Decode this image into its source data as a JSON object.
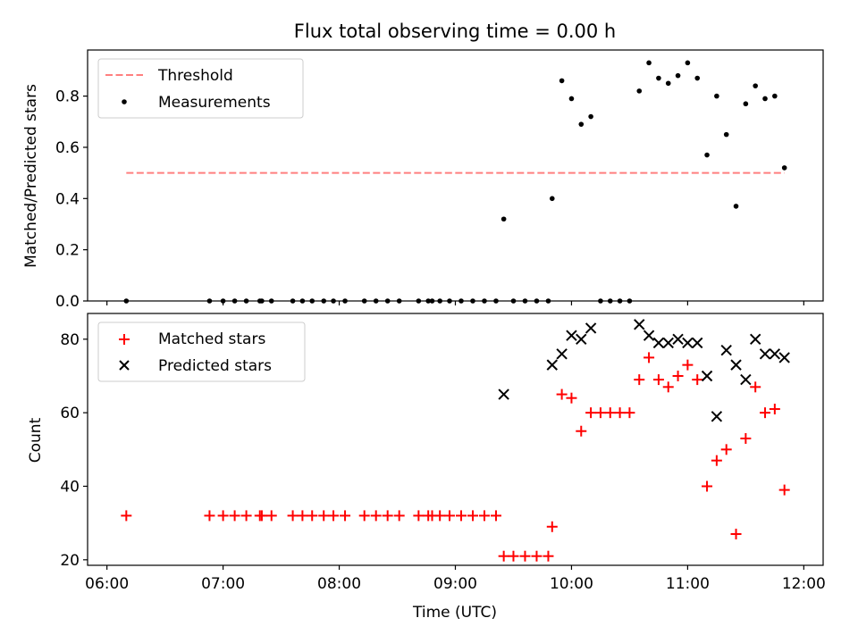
{
  "title": "Flux total observing time = 0.00 h",
  "chart_data": [
    {
      "type": "scatter",
      "ylabel": "Matched/Predicted stars",
      "xlim": [
        "05:50",
        "12:10"
      ],
      "ylim": [
        0,
        0.98
      ],
      "yticks": [
        0.0,
        0.2,
        0.4,
        0.6,
        0.8
      ],
      "ytick_labels": [
        "0.0",
        "0.2",
        "0.4",
        "0.6",
        "0.8"
      ],
      "legend_position": "upper-left",
      "threshold": {
        "name": "Threshold",
        "color": "#ff7f7f",
        "style": "dashed",
        "y": 0.5,
        "x": [
          "06:10",
          "11:50"
        ]
      },
      "measurements": {
        "name": "Measurements",
        "color": "#000000",
        "points": [
          [
            "06:10",
            0.0
          ],
          [
            "06:53",
            0.0
          ],
          [
            "07:00",
            0.0
          ],
          [
            "07:06",
            0.0
          ],
          [
            "07:12",
            0.0
          ],
          [
            "07:19",
            0.0
          ],
          [
            "07:20",
            0.0
          ],
          [
            "07:25",
            0.0
          ],
          [
            "07:36",
            0.0
          ],
          [
            "07:41",
            0.0
          ],
          [
            "07:46",
            0.0
          ],
          [
            "07:52",
            0.0
          ],
          [
            "07:57",
            0.0
          ],
          [
            "08:03",
            0.0
          ],
          [
            "08:13",
            0.0
          ],
          [
            "08:19",
            0.0
          ],
          [
            "08:25",
            0.0
          ],
          [
            "08:31",
            0.0
          ],
          [
            "08:41",
            0.0
          ],
          [
            "08:46",
            0.0
          ],
          [
            "08:48",
            0.0
          ],
          [
            "08:52",
            0.0
          ],
          [
            "08:57",
            0.0
          ],
          [
            "09:03",
            0.0
          ],
          [
            "09:09",
            0.0
          ],
          [
            "09:15",
            0.0
          ],
          [
            "09:21",
            0.0
          ],
          [
            "09:25",
            0.32
          ],
          [
            "09:30",
            0.0
          ],
          [
            "09:36",
            0.0
          ],
          [
            "09:42",
            0.0
          ],
          [
            "09:48",
            0.0
          ],
          [
            "09:50",
            0.4
          ],
          [
            "09:55",
            0.86
          ],
          [
            "10:00",
            0.79
          ],
          [
            "10:05",
            0.69
          ],
          [
            "10:10",
            0.72
          ],
          [
            "10:15",
            0.0
          ],
          [
            "10:20",
            0.0
          ],
          [
            "10:25",
            0.0
          ],
          [
            "10:30",
            0.0
          ],
          [
            "10:35",
            0.82
          ],
          [
            "10:40",
            0.93
          ],
          [
            "10:45",
            0.87
          ],
          [
            "10:50",
            0.85
          ],
          [
            "10:55",
            0.88
          ],
          [
            "11:00",
            0.93
          ],
          [
            "11:05",
            0.87
          ],
          [
            "11:10",
            0.57
          ],
          [
            "11:15",
            0.8
          ],
          [
            "11:20",
            0.65
          ],
          [
            "11:25",
            0.37
          ],
          [
            "11:30",
            0.77
          ],
          [
            "11:35",
            0.84
          ],
          [
            "11:40",
            0.79
          ],
          [
            "11:45",
            0.8
          ],
          [
            "11:50",
            0.52
          ]
        ]
      }
    },
    {
      "type": "scatter",
      "ylabel": "Count",
      "xlabel": "Time (UTC)",
      "xlim": [
        "05:50",
        "12:10"
      ],
      "ylim": [
        18.5,
        87
      ],
      "yticks": [
        20,
        40,
        60,
        80
      ],
      "ytick_labels": [
        "20",
        "40",
        "60",
        "80"
      ],
      "xticks": [
        "06:00",
        "07:00",
        "08:00",
        "09:00",
        "10:00",
        "11:00",
        "12:00"
      ],
      "xtick_labels": [
        "06:00",
        "07:00",
        "08:00",
        "09:00",
        "10:00",
        "11:00",
        "12:00"
      ],
      "legend_position": "upper-left",
      "series": [
        {
          "name": "Matched stars",
          "color": "#ff0000",
          "marker": "plus",
          "points": [
            [
              "06:10",
              32
            ],
            [
              "06:53",
              32
            ],
            [
              "07:00",
              32
            ],
            [
              "07:06",
              32
            ],
            [
              "07:12",
              32
            ],
            [
              "07:19",
              32
            ],
            [
              "07:20",
              32
            ],
            [
              "07:25",
              32
            ],
            [
              "07:36",
              32
            ],
            [
              "07:41",
              32
            ],
            [
              "07:46",
              32
            ],
            [
              "07:52",
              32
            ],
            [
              "07:57",
              32
            ],
            [
              "08:03",
              32
            ],
            [
              "08:13",
              32
            ],
            [
              "08:19",
              32
            ],
            [
              "08:25",
              32
            ],
            [
              "08:31",
              32
            ],
            [
              "08:41",
              32
            ],
            [
              "08:46",
              32
            ],
            [
              "08:48",
              32
            ],
            [
              "08:52",
              32
            ],
            [
              "08:57",
              32
            ],
            [
              "09:03",
              32
            ],
            [
              "09:09",
              32
            ],
            [
              "09:15",
              32
            ],
            [
              "09:21",
              32
            ],
            [
              "09:25",
              21
            ],
            [
              "09:30",
              21
            ],
            [
              "09:36",
              21
            ],
            [
              "09:42",
              21
            ],
            [
              "09:48",
              21
            ],
            [
              "09:50",
              29
            ],
            [
              "09:55",
              65
            ],
            [
              "10:00",
              64
            ],
            [
              "10:05",
              55
            ],
            [
              "10:10",
              60
            ],
            [
              "10:15",
              60
            ],
            [
              "10:20",
              60
            ],
            [
              "10:25",
              60
            ],
            [
              "10:30",
              60
            ],
            [
              "10:35",
              69
            ],
            [
              "10:40",
              75
            ],
            [
              "10:45",
              69
            ],
            [
              "10:50",
              67
            ],
            [
              "10:55",
              70
            ],
            [
              "11:00",
              73
            ],
            [
              "11:05",
              69
            ],
            [
              "11:10",
              40
            ],
            [
              "11:15",
              47
            ],
            [
              "11:20",
              50
            ],
            [
              "11:25",
              27
            ],
            [
              "11:30",
              53
            ],
            [
              "11:35",
              67
            ],
            [
              "11:40",
              60
            ],
            [
              "11:45",
              61
            ],
            [
              "11:50",
              39
            ]
          ]
        },
        {
          "name": "Predicted stars",
          "color": "#000000",
          "marker": "x",
          "points": [
            [
              "09:25",
              65
            ],
            [
              "09:50",
              73
            ],
            [
              "09:55",
              76
            ],
            [
              "10:00",
              81
            ],
            [
              "10:05",
              80
            ],
            [
              "10:10",
              83
            ],
            [
              "10:35",
              84
            ],
            [
              "10:40",
              81
            ],
            [
              "10:45",
              79
            ],
            [
              "10:50",
              79
            ],
            [
              "10:55",
              80
            ],
            [
              "11:00",
              79
            ],
            [
              "11:05",
              79
            ],
            [
              "11:10",
              70
            ],
            [
              "11:15",
              59
            ],
            [
              "11:20",
              77
            ],
            [
              "11:25",
              73
            ],
            [
              "11:30",
              69
            ],
            [
              "11:35",
              80
            ],
            [
              "11:40",
              76
            ],
            [
              "11:45",
              76
            ],
            [
              "11:50",
              75
            ]
          ]
        }
      ]
    }
  ]
}
